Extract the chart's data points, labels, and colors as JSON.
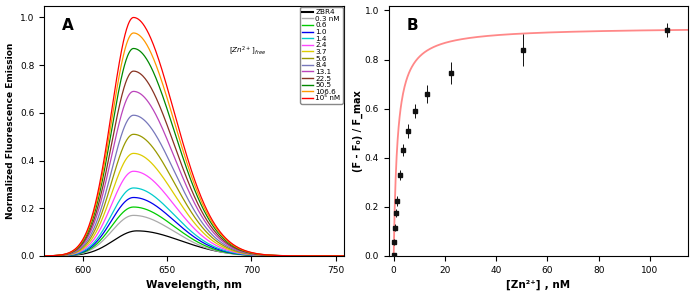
{
  "panel_A": {
    "title": "A",
    "xlabel": "Wavelength, nm",
    "ylabel": "Normalized Fluorescence Emission",
    "xlim": [
      577,
      755
    ],
    "ylim": [
      0.0,
      1.05
    ],
    "yticks": [
      0.0,
      0.2,
      0.4,
      0.6,
      0.8,
      1.0
    ],
    "xticks": [
      600,
      650,
      700,
      750
    ],
    "curves": [
      {
        "label": "ZBR4",
        "color": "#000000",
        "peak": 0.105,
        "peak_wl": 632,
        "sigma_l": 14,
        "sigma_r": 26
      },
      {
        "label": "0.3 nM",
        "color": "#aaaaaa",
        "peak": 0.17,
        "peak_wl": 630,
        "sigma_l": 13,
        "sigma_r": 24
      },
      {
        "label": "0.6",
        "color": "#00cc00",
        "peak": 0.205,
        "peak_wl": 630,
        "sigma_l": 13,
        "sigma_r": 24
      },
      {
        "label": "1.0",
        "color": "#0000ee",
        "peak": 0.245,
        "peak_wl": 630,
        "sigma_l": 13,
        "sigma_r": 24
      },
      {
        "label": "1.4",
        "color": "#00cccc",
        "peak": 0.285,
        "peak_wl": 630,
        "sigma_l": 13,
        "sigma_r": 24
      },
      {
        "label": "2.4",
        "color": "#ff44ff",
        "peak": 0.355,
        "peak_wl": 630,
        "sigma_l": 13,
        "sigma_r": 24
      },
      {
        "label": "3.7",
        "color": "#ddcc00",
        "peak": 0.43,
        "peak_wl": 630,
        "sigma_l": 13,
        "sigma_r": 24
      },
      {
        "label": "5.6",
        "color": "#999900",
        "peak": 0.51,
        "peak_wl": 630,
        "sigma_l": 13,
        "sigma_r": 24
      },
      {
        "label": "8.4",
        "color": "#7777bb",
        "peak": 0.59,
        "peak_wl": 630,
        "sigma_l": 13,
        "sigma_r": 24
      },
      {
        "label": "13.1",
        "color": "#bb44bb",
        "peak": 0.69,
        "peak_wl": 630,
        "sigma_l": 13,
        "sigma_r": 24
      },
      {
        "label": "22.5",
        "color": "#883322",
        "peak": 0.775,
        "peak_wl": 630,
        "sigma_l": 13,
        "sigma_r": 24
      },
      {
        "label": "50.5",
        "color": "#008800",
        "peak": 0.87,
        "peak_wl": 630,
        "sigma_l": 13,
        "sigma_r": 24
      },
      {
        "label": "106.6",
        "color": "#ff9900",
        "peak": 0.935,
        "peak_wl": 630,
        "sigma_l": 13,
        "sigma_r": 24
      },
      {
        "label": "10⁵ nM",
        "color": "#ff0000",
        "peak": 1.0,
        "peak_wl": 630,
        "sigma_l": 13,
        "sigma_r": 24
      }
    ]
  },
  "panel_B": {
    "title": "B",
    "xlabel": "[Zn²⁺]  , nM",
    "ylabel": "(F - F₀) / F_max",
    "xlim": [
      -2,
      115
    ],
    "ylim": [
      0.0,
      1.02
    ],
    "yticks": [
      0.0,
      0.2,
      0.4,
      0.6,
      0.8,
      1.0
    ],
    "xticks": [
      0,
      20,
      40,
      60,
      80,
      100
    ],
    "data_x": [
      0.0,
      0.3,
      0.6,
      1.0,
      1.4,
      2.4,
      3.7,
      5.6,
      8.4,
      13.1,
      22.5,
      50.5,
      106.6
    ],
    "data_y": [
      0.005,
      0.055,
      0.115,
      0.175,
      0.225,
      0.33,
      0.43,
      0.51,
      0.59,
      0.66,
      0.745,
      0.84,
      0.92
    ],
    "data_yerr": [
      0.005,
      0.012,
      0.015,
      0.018,
      0.02,
      0.022,
      0.025,
      0.028,
      0.03,
      0.035,
      0.045,
      0.065,
      0.03
    ],
    "fit_Kd": 1.5,
    "fit_color": "#ff8888",
    "marker_color": "#111111"
  }
}
